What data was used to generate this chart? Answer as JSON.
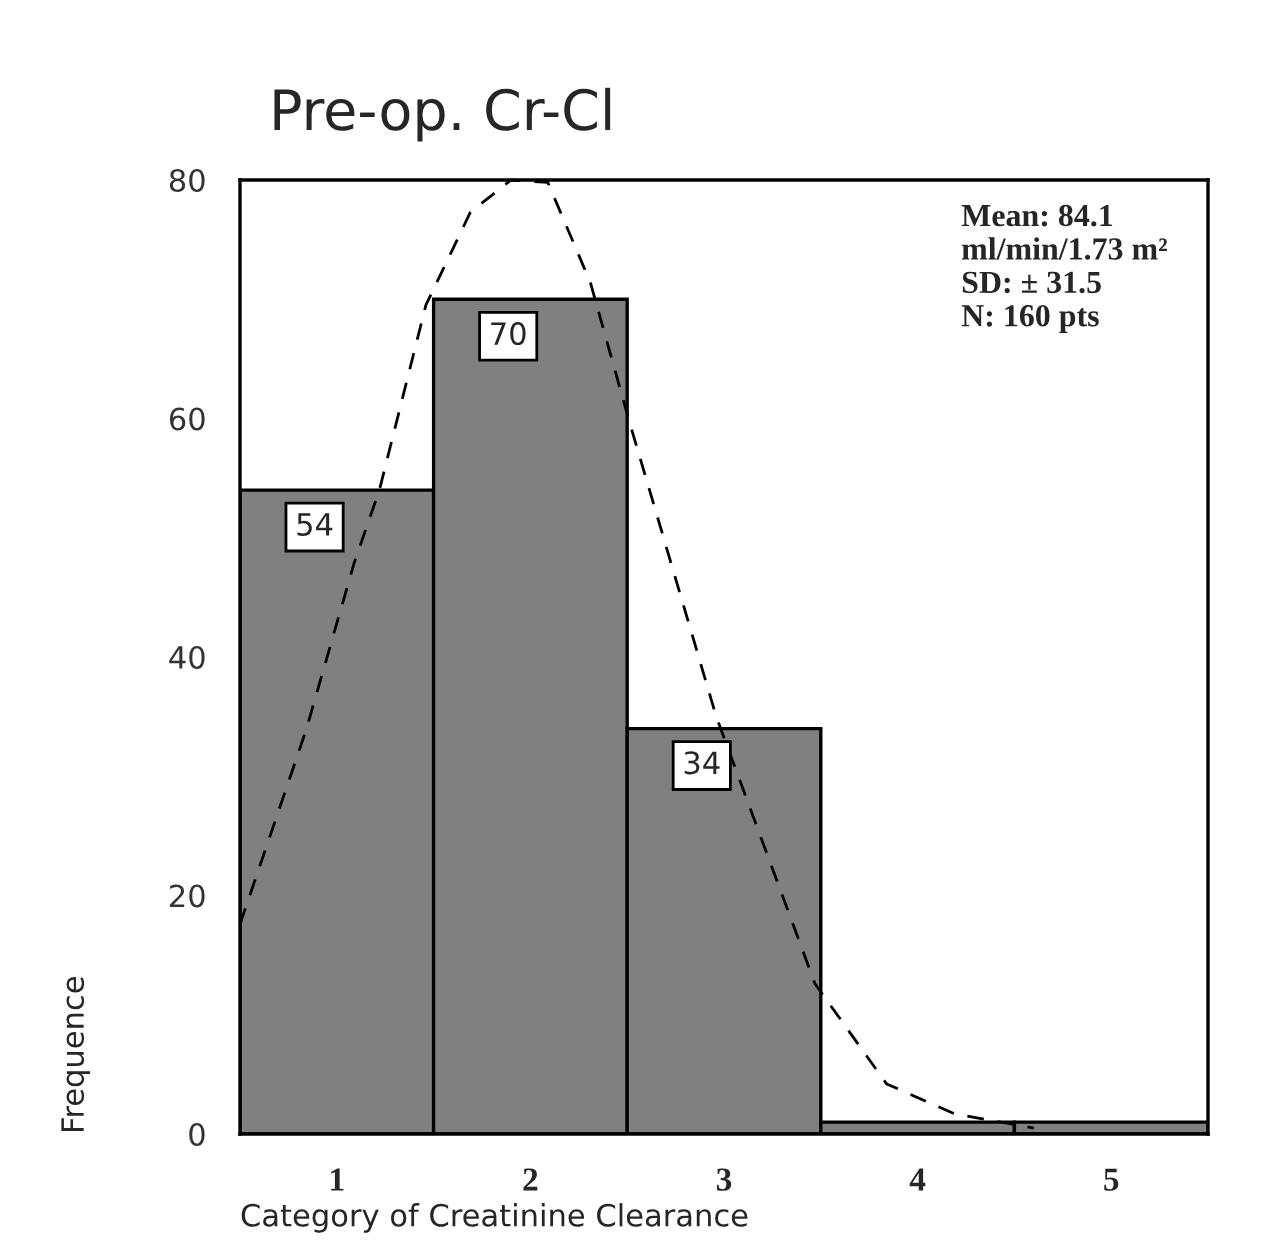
{
  "chart_data": {
    "type": "histogram",
    "title": "Pre-op. Cr-Cl",
    "xlabel": "Category of Creatinine Clearance",
    "ylabel": "Frequence",
    "bins": [
      0.5,
      1.5,
      2.5,
      3.5,
      4.5,
      5.5
    ],
    "values": [
      54,
      70,
      34,
      1,
      1
    ],
    "color": "#808080",
    "value_labels": [
      "54",
      "70",
      "34",
      null,
      null
    ],
    "xlim": [
      0.5,
      5.5
    ],
    "xticks": [
      1,
      2,
      3,
      4,
      5
    ],
    "ylim": [
      0,
      80
    ],
    "yticks": [
      0,
      20,
      40,
      60,
      80
    ],
    "series": [
      {
        "type": "line",
        "line_style": "dashed",
        "color": "#000000",
        "x": [
          0.5,
          0.84,
          1.09,
          1.22,
          1.46,
          1.69,
          1.9,
          2.09,
          2.31,
          2.51,
          2.96,
          3.47,
          3.84,
          4.19,
          4.6
        ],
        "values": [
          17.6,
          33.8,
          47.9,
          54,
          69.5,
          77.3,
          80,
          79.8,
          71.4,
          59.8,
          35,
          12.6,
          4.2,
          1.7,
          0.5
        ]
      }
    ],
    "annotations": [
      "Mean: 84.1\nml/min/1.73 m²\nSD: ± 31.5\nN: 160 pts"
    ],
    "grid": false,
    "legend": false
  }
}
